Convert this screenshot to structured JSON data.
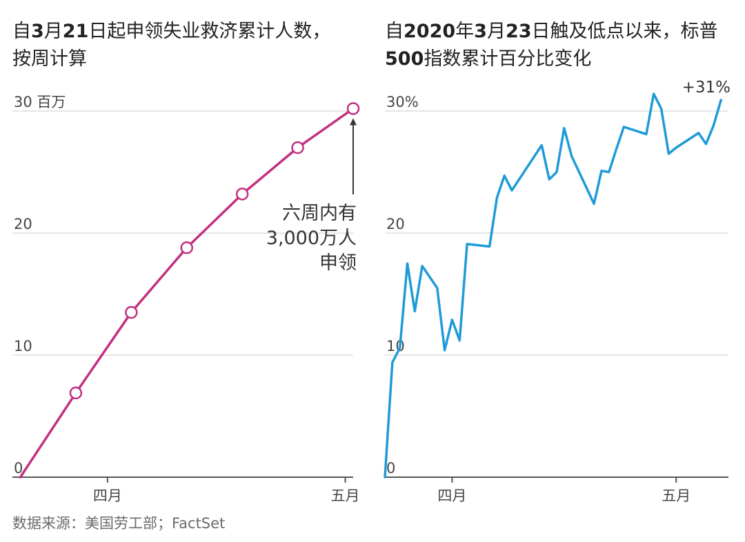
{
  "source_text": "数据来源：美国劳工部；FactSet",
  "colors": {
    "claims_line": "#c2307f",
    "sp500_line": "#1e9bd7",
    "grid": "#dddddd",
    "axis": "#555555",
    "text": "#333333"
  },
  "chart_data": [
    {
      "type": "line",
      "title": "自3月21日起申领失业救济累计人数，按周计算",
      "title_parts": [
        "自",
        "3",
        "月",
        "21",
        "日起申领失业救济累计人数，按周计算"
      ],
      "x_ticks": [
        {
          "label": "四月",
          "date": "2020-04-01"
        },
        {
          "label": "五月",
          "date": "2020-05-01"
        }
      ],
      "y_ticks": [
        {
          "label": "0",
          "value": 0
        },
        {
          "label": "10",
          "value": 10
        },
        {
          "label": "20",
          "value": 20
        },
        {
          "label": "30 百万",
          "value": 30
        }
      ],
      "ylim": [
        0,
        30
      ],
      "xlim": [
        "2020-03-20",
        "2020-05-02"
      ],
      "series": [
        {
          "markers": true,
          "points": [
            {
              "x": "2020-03-21",
              "y": 0
            },
            {
              "x": "2020-03-28",
              "y": 6.9
            },
            {
              "x": "2020-04-04",
              "y": 13.5
            },
            {
              "x": "2020-04-11",
              "y": 18.8
            },
            {
              "x": "2020-04-18",
              "y": 23.2
            },
            {
              "x": "2020-04-25",
              "y": 27.0
            },
            {
              "x": "2020-05-02",
              "y": 30.2
            }
          ]
        }
      ],
      "annotation": {
        "lines": [
          "六周内有",
          "3,000万人",
          "申领"
        ],
        "arrow_to": {
          "x": "2020-05-02",
          "y": 30.2
        }
      }
    },
    {
      "type": "line",
      "title": "自2020年3月23日触及低点以来，标普500指数累计百分比变化",
      "title_parts": [
        "自",
        "2020",
        "年",
        "3",
        "月",
        "23",
        "日触及低点以来，标普",
        "500",
        "指数累计百分比变化"
      ],
      "x_ticks": [
        {
          "label": "四月",
          "date": "2020-04-01"
        },
        {
          "label": "五月",
          "date": "2020-05-01"
        }
      ],
      "y_ticks": [
        {
          "label": "0",
          "value": 0
        },
        {
          "label": "10",
          "value": 10
        },
        {
          "label": "20",
          "value": 20
        },
        {
          "label": "30%",
          "value": 30
        }
      ],
      "ylim": [
        0,
        30
      ],
      "xlim": [
        "2020-03-23",
        "2020-05-08"
      ],
      "end_label": "+31%",
      "series": [
        {
          "markers": false,
          "points": [
            {
              "x": "2020-03-23",
              "y": 0
            },
            {
              "x": "2020-03-24",
              "y": 9.4
            },
            {
              "x": "2020-03-25",
              "y": 10.6
            },
            {
              "x": "2020-03-26",
              "y": 17.5
            },
            {
              "x": "2020-03-27",
              "y": 13.6
            },
            {
              "x": "2020-03-28",
              "y": 17.3
            },
            {
              "x": "2020-03-30",
              "y": 15.5
            },
            {
              "x": "2020-03-31",
              "y": 10.4
            },
            {
              "x": "2020-04-01",
              "y": 12.9
            },
            {
              "x": "2020-04-02",
              "y": 11.2
            },
            {
              "x": "2020-04-03",
              "y": 19.1
            },
            {
              "x": "2020-04-06",
              "y": 18.9
            },
            {
              "x": "2020-04-07",
              "y": 22.9
            },
            {
              "x": "2020-04-08",
              "y": 24.7
            },
            {
              "x": "2020-04-09",
              "y": 23.5
            },
            {
              "x": "2020-04-13",
              "y": 27.2
            },
            {
              "x": "2020-04-14",
              "y": 24.4
            },
            {
              "x": "2020-04-15",
              "y": 25.0
            },
            {
              "x": "2020-04-16",
              "y": 28.6
            },
            {
              "x": "2020-04-17",
              "y": 26.3
            },
            {
              "x": "2020-04-20",
              "y": 22.4
            },
            {
              "x": "2020-04-21",
              "y": 25.1
            },
            {
              "x": "2020-04-22",
              "y": 25.0
            },
            {
              "x": "2020-04-23",
              "y": 26.9
            },
            {
              "x": "2020-04-24",
              "y": 28.7
            },
            {
              "x": "2020-04-27",
              "y": 28.1
            },
            {
              "x": "2020-04-28",
              "y": 31.4
            },
            {
              "x": "2020-04-29",
              "y": 30.2
            },
            {
              "x": "2020-04-30",
              "y": 26.5
            },
            {
              "x": "2020-05-01",
              "y": 27.0
            },
            {
              "x": "2020-05-04",
              "y": 28.2
            },
            {
              "x": "2020-05-05",
              "y": 27.3
            },
            {
              "x": "2020-05-06",
              "y": 28.8
            },
            {
              "x": "2020-05-07",
              "y": 30.9
            }
          ]
        }
      ]
    }
  ]
}
